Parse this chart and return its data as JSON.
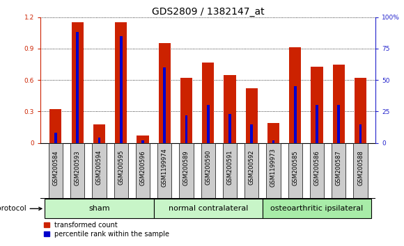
{
  "title": "GDS2809 / 1382147_at",
  "samples": [
    "GSM200584",
    "GSM200593",
    "GSM200594",
    "GSM200595",
    "GSM200596",
    "GSM1199974",
    "GSM200589",
    "GSM200590",
    "GSM200591",
    "GSM200592",
    "GSM1199973",
    "GSM200585",
    "GSM200586",
    "GSM200587",
    "GSM200588"
  ],
  "red_values": [
    0.32,
    1.15,
    0.18,
    1.15,
    0.07,
    0.95,
    0.62,
    0.77,
    0.65,
    0.52,
    0.19,
    0.91,
    0.73,
    0.75,
    0.62
  ],
  "blue_values_pct": [
    8,
    88,
    4,
    85,
    2,
    60,
    22,
    30,
    23,
    15,
    2,
    45,
    30,
    30,
    15
  ],
  "groups": [
    {
      "name": "sham",
      "start": 0,
      "end": 5,
      "color": "#c8f5c8"
    },
    {
      "name": "normal contralateral",
      "start": 5,
      "end": 10,
      "color": "#c8f5c8"
    },
    {
      "name": "osteoarthritic ipsilateral",
      "start": 10,
      "end": 15,
      "color": "#a8eca8"
    }
  ],
  "ylim_left": [
    0,
    1.2
  ],
  "ylim_right": [
    0,
    100
  ],
  "yticks_left": [
    0,
    0.3,
    0.6,
    0.9,
    1.2
  ],
  "yticks_right": [
    0,
    25,
    50,
    75,
    100
  ],
  "ytick_labels_left": [
    "0",
    "0.3",
    "0.6",
    "0.9",
    "1.2"
  ],
  "ytick_labels_right": [
    "0",
    "25",
    "50",
    "75",
    "100%"
  ],
  "bar_color_red": "#cc2200",
  "bar_color_blue": "#0000cc",
  "bg_color": "#ffffff",
  "plot_bg": "#ffffff",
  "axis_color_left": "#cc2200",
  "axis_color_right": "#2222cc",
  "title_fontsize": 10,
  "tick_label_fontsize": 6.5,
  "bar_width": 0.55,
  "blue_bar_width": 0.12,
  "legend_red_label": "transformed count",
  "legend_blue_label": "percentile rank within the sample",
  "protocol_label": "protocol",
  "sample_label_fontsize": 6,
  "sample_bg_color": "#cccccc",
  "group_fontsize": 8
}
